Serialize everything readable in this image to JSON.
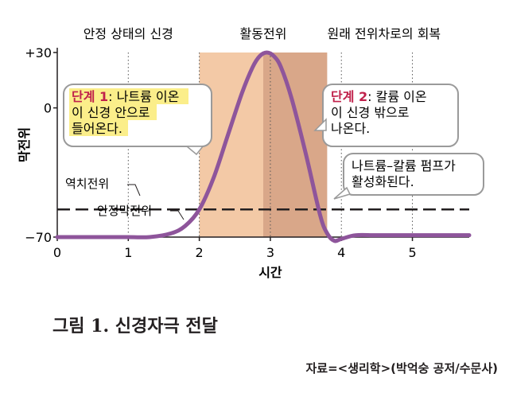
{
  "chart_data": {
    "type": "line",
    "xlabel": "시간",
    "ylabel": "막전위",
    "xlim": [
      0,
      5.8
    ],
    "ylim": [
      -70,
      30
    ],
    "x_ticks": [
      "0",
      "1",
      "2",
      "3",
      "4",
      "5"
    ],
    "y_ticks": [
      "+30",
      "0",
      "−70"
    ],
    "phase_labels": [
      "안정 상태의 신경",
      "활동전위",
      "원래 전위차로의 회복"
    ],
    "threshold_label": "역치전위",
    "rest_label": "안정막전위",
    "series": [
      {
        "x": [
          0,
          0.5,
          1.0,
          1.3,
          1.6,
          1.8,
          2.0,
          2.2,
          2.4,
          2.6,
          2.75,
          2.85,
          2.95,
          3.05,
          3.15,
          3.3,
          3.5,
          3.7,
          3.8,
          3.9,
          4.0,
          4.2,
          4.5,
          5.0,
          5.8
        ],
        "y": [
          -70,
          -70,
          -70,
          -70,
          -68,
          -64,
          -55,
          -38,
          -15,
          8,
          22,
          28,
          30,
          28,
          22,
          5,
          -25,
          -58,
          -68,
          -72,
          -71,
          -69,
          -69,
          -69,
          -69
        ]
      }
    ],
    "shaded_regions": [
      {
        "from": 2.0,
        "to": 2.9,
        "color": "#f3c9a6"
      },
      {
        "from": 2.9,
        "to": 3.8,
        "color": "#d9a789"
      }
    ],
    "threshold_y": -55,
    "callouts": [
      {
        "title": "단계 1",
        "text": "나트륨 이온이 신경 안으로 들어온다.",
        "lines": [
          "나트륨 이온",
          "이 신경 안으로",
          "들어온다."
        ]
      },
      {
        "title": "단계 2",
        "text": "칼륨 이온이 신경 밖으로 나온다.",
        "lines": [
          "칼륨 이온",
          "이 신경 밖으로",
          "나온다."
        ]
      },
      {
        "title": "",
        "text": "나트륨–칼륨 펌프가 활성화된다.",
        "lines": [
          "나트륨–칼륨 펌프가",
          "활성화된다."
        ]
      }
    ]
  },
  "caption": "그림 1. 신경자극 전달",
  "source": "자료=<생리학>(박억숭 공저/수문사)",
  "colors": {
    "curve": "#8e559b",
    "axis": "#231f20",
    "step_title": "#c0214b",
    "highlight": "#fbee8a",
    "bubble_border": "#9a9a9a"
  }
}
